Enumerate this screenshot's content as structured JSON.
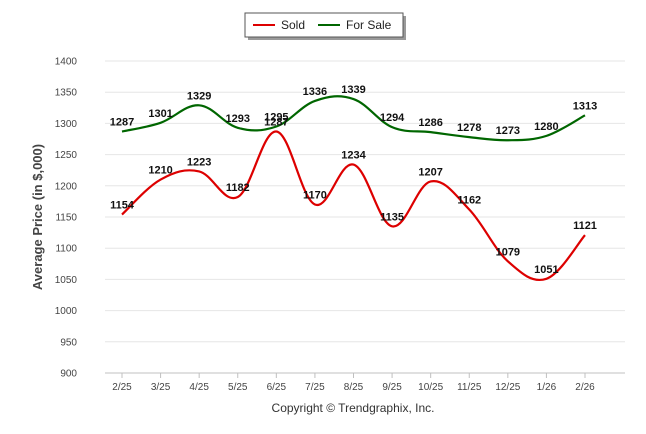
{
  "chart_data": {
    "type": "line",
    "title": "",
    "xlabel": "",
    "ylabel": "Average Price (in $,000)",
    "ylim": [
      900,
      1400
    ],
    "yticks": [
      900,
      950,
      1000,
      1050,
      1100,
      1150,
      1200,
      1250,
      1300,
      1350,
      1400
    ],
    "categories": [
      "2/25",
      "3/25",
      "4/25",
      "5/25",
      "6/25",
      "7/25",
      "8/25",
      "9/25",
      "10/25",
      "11/25",
      "12/25",
      "1/26",
      "2/26"
    ],
    "series": [
      {
        "name": "Sold",
        "color": "#dd0000",
        "values": [
          1154,
          1210,
          1223,
          1182,
          1287,
          1170,
          1234,
          1135,
          1207,
          1162,
          1079,
          1051,
          1121
        ]
      },
      {
        "name": "For Sale",
        "color": "#006600",
        "values": [
          1287,
          1301,
          1329,
          1293,
          1295,
          1336,
          1339,
          1294,
          1286,
          1278,
          1273,
          1280,
          1313
        ]
      }
    ],
    "legend": "top-center",
    "grid": true,
    "credit": "Copyright © Trendgraphix, Inc."
  }
}
